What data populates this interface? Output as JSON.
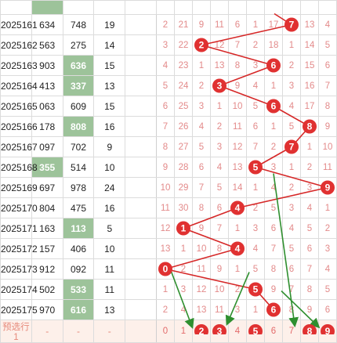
{
  "colors": {
    "highlight": "#9dc39a",
    "ball": "#e03131",
    "line": "#d62828",
    "arrow": "#2f8f2f",
    "digit": "#e38a8a"
  },
  "rows": [
    {
      "issue": "2025161",
      "v1": "634",
      "v2": "748",
      "v3": "19",
      "v2hl": false,
      "v1hl": false,
      "nums": [
        "2",
        "21",
        "9",
        "11",
        "6",
        "1",
        "17",
        "7",
        "13",
        "4"
      ],
      "ball": 7
    },
    {
      "issue": "2025162",
      "v1": "563",
      "v2": "275",
      "v3": "14",
      "v2hl": false,
      "v1hl": false,
      "nums": [
        "3",
        "22",
        "2",
        "12",
        "7",
        "2",
        "18",
        "1",
        "14",
        "5"
      ],
      "ball": 2
    },
    {
      "issue": "2025163",
      "v1": "903",
      "v2": "636",
      "v3": "15",
      "v2hl": true,
      "v1hl": false,
      "nums": [
        "4",
        "23",
        "1",
        "13",
        "8",
        "3",
        "6",
        "2",
        "15",
        "6"
      ],
      "ball": 6
    },
    {
      "issue": "2025164",
      "v1": "413",
      "v2": "337",
      "v3": "13",
      "v2hl": true,
      "v1hl": false,
      "nums": [
        "5",
        "24",
        "2",
        "3",
        "9",
        "4",
        "1",
        "3",
        "16",
        "7"
      ],
      "ball": 3
    },
    {
      "issue": "2025165",
      "v1": "063",
      "v2": "609",
      "v3": "15",
      "v2hl": false,
      "v1hl": false,
      "nums": [
        "6",
        "25",
        "3",
        "1",
        "10",
        "5",
        "6",
        "4",
        "17",
        "8"
      ],
      "ball": 6
    },
    {
      "issue": "2025166",
      "v1": "178",
      "v2": "808",
      "v3": "16",
      "v2hl": true,
      "v1hl": false,
      "nums": [
        "7",
        "26",
        "4",
        "2",
        "11",
        "6",
        "1",
        "5",
        "8",
        "9"
      ],
      "ball": 8
    },
    {
      "issue": "2025167",
      "v1": "097",
      "v2": "702",
      "v3": "9",
      "v2hl": false,
      "v1hl": false,
      "nums": [
        "8",
        "27",
        "5",
        "3",
        "12",
        "7",
        "2",
        "7",
        "1",
        "10"
      ],
      "ball": 7
    },
    {
      "issue": "2025168",
      "v1": "355",
      "v2": "514",
      "v3": "10",
      "v2hl": false,
      "v1hl": true,
      "nums": [
        "9",
        "28",
        "6",
        "4",
        "13",
        "5",
        "3",
        "1",
        "2",
        "11"
      ],
      "ball": 5
    },
    {
      "issue": "2025169",
      "v1": "697",
      "v2": "978",
      "v3": "24",
      "v2hl": false,
      "v1hl": false,
      "nums": [
        "10",
        "29",
        "7",
        "5",
        "14",
        "1",
        "4",
        "2",
        "3",
        "9"
      ],
      "ball": 9
    },
    {
      "issue": "2025170",
      "v1": "804",
      "v2": "475",
      "v3": "16",
      "v2hl": false,
      "v1hl": false,
      "nums": [
        "11",
        "30",
        "8",
        "6",
        "4",
        "2",
        "5",
        "3",
        "4",
        "1"
      ],
      "ball": 4
    },
    {
      "issue": "2025171",
      "v1": "163",
      "v2": "113",
      "v3": "5",
      "v2hl": true,
      "v1hl": false,
      "nums": [
        "12",
        "1",
        "9",
        "7",
        "1",
        "3",
        "6",
        "4",
        "5",
        "2"
      ],
      "ball": 1
    },
    {
      "issue": "2025172",
      "v1": "157",
      "v2": "406",
      "v3": "10",
      "v2hl": false,
      "v1hl": false,
      "nums": [
        "13",
        "1",
        "10",
        "8",
        "4",
        "4",
        "7",
        "5",
        "6",
        "3"
      ],
      "ball": 4
    },
    {
      "issue": "2025173",
      "v1": "912",
      "v2": "092",
      "v3": "11",
      "v2hl": false,
      "v1hl": false,
      "nums": [
        "0",
        "2",
        "11",
        "9",
        "1",
        "5",
        "8",
        "6",
        "7",
        "4"
      ],
      "ball": 0
    },
    {
      "issue": "2025174",
      "v1": "502",
      "v2": "533",
      "v3": "11",
      "v2hl": true,
      "v1hl": false,
      "nums": [
        "1",
        "3",
        "12",
        "10",
        "2",
        "5",
        "9",
        "7",
        "8",
        "5"
      ],
      "ball": 5
    },
    {
      "issue": "2025175",
      "v1": "970",
      "v2": "616",
      "v3": "13",
      "v2hl": true,
      "v1hl": false,
      "nums": [
        "2",
        "4",
        "13",
        "11",
        "3",
        "1",
        "6",
        "8",
        "9",
        "6"
      ],
      "ball": 6
    }
  ],
  "pick": {
    "label": "预选行1",
    "dash": "-",
    "nums": [
      "0",
      "1",
      "2",
      "3",
      "4",
      "5",
      "6",
      "7",
      "8",
      "9"
    ],
    "balls": [
      2,
      3,
      5,
      8,
      9
    ]
  }
}
